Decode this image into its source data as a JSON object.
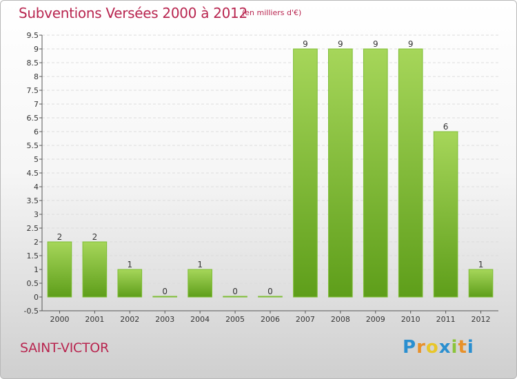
{
  "title": "Subventions Versées 2000 à 2012",
  "subtitle": "(en milliers d'€)",
  "place_name": "SAINT-VICTOR",
  "logo": {
    "text": "Proxiti",
    "letter_colors": [
      "#2a8fd0",
      "#e8912a",
      "#e8c62a",
      "#2a8fd0",
      "#8bc43a",
      "#e8912a",
      "#2a8fd0"
    ]
  },
  "colors": {
    "bar_top": "#a6d65a",
    "bar_bottom": "#5e9e1a",
    "bar_edge": "#7dbd34",
    "axis_text": "#333333",
    "accent": "#b8254f"
  },
  "chart_data": {
    "type": "bar",
    "categories": [
      "2000",
      "2001",
      "2002",
      "2003",
      "2004",
      "2005",
      "2006",
      "2007",
      "2008",
      "2009",
      "2010",
      "2011",
      "2012"
    ],
    "values": [
      2,
      2,
      1,
      0,
      1,
      0,
      0,
      9,
      9,
      9,
      9,
      6,
      1
    ],
    "value_labels": [
      "2",
      "2",
      "1",
      "0",
      "1",
      "0",
      "0",
      "9",
      "9",
      "9",
      "9",
      "6",
      "1"
    ],
    "y_ticks": [
      "-0.5",
      "0",
      "0.5",
      "1",
      "1.5",
      "2",
      "2.5",
      "3",
      "3.5",
      "4",
      "4.5",
      "5",
      "5.5",
      "6",
      "6.5",
      "7",
      "7.5",
      "8",
      "8.5",
      "9",
      "9.5"
    ],
    "ylim": [
      -0.5,
      9.5
    ],
    "xlabel": "",
    "ylabel": "",
    "grid": true
  }
}
